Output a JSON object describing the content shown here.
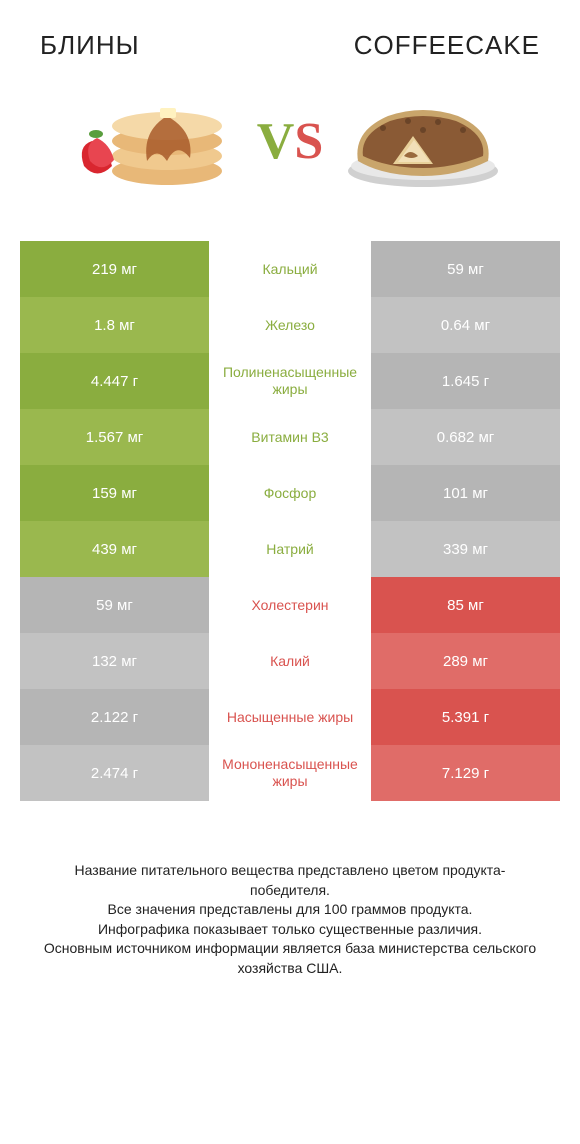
{
  "header": {
    "left_title": "БЛИНЫ",
    "right_title": "COFFEECAKE"
  },
  "vs": {
    "label": "VS",
    "left_color": "#8aad3f",
    "right_color": "#d9534f"
  },
  "colors": {
    "left_green_a": "#8aad3f",
    "left_green_b": "#9ab84e",
    "right_red_a": "#d9534f",
    "right_red_b": "#e06c68",
    "grey_a": "#b5b5b5",
    "grey_b": "#c2c2c2",
    "mid_green": "#8aad3f",
    "mid_red": "#d9534f"
  },
  "rows": [
    {
      "left": "219 мг",
      "mid": "Кальций",
      "right": "59 мг",
      "winner": "left"
    },
    {
      "left": "1.8 мг",
      "mid": "Железо",
      "right": "0.64 мг",
      "winner": "left"
    },
    {
      "left": "4.447 г",
      "mid": "Полиненасыщенные жиры",
      "right": "1.645 г",
      "winner": "left"
    },
    {
      "left": "1.567 мг",
      "mid": "Витамин B3",
      "right": "0.682 мг",
      "winner": "left"
    },
    {
      "left": "159 мг",
      "mid": "Фосфор",
      "right": "101 мг",
      "winner": "left"
    },
    {
      "left": "439 мг",
      "mid": "Натрий",
      "right": "339 мг",
      "winner": "left"
    },
    {
      "left": "59 мг",
      "mid": "Холестерин",
      "right": "85 мг",
      "winner": "right"
    },
    {
      "left": "132 мг",
      "mid": "Калий",
      "right": "289 мг",
      "winner": "right"
    },
    {
      "left": "2.122 г",
      "mid": "Насыщенные жиры",
      "right": "5.391 г",
      "winner": "right"
    },
    {
      "left": "2.474 г",
      "mid": "Мононенасыщенные жиры",
      "right": "7.129 г",
      "winner": "right"
    }
  ],
  "footer": {
    "line1": "Название питательного вещества представлено цветом продукта-победителя.",
    "line2": "Все значения представлены для 100 граммов продукта.",
    "line3": "Инфографика показывает только существенные различия.",
    "line4": "Основным источником информации является база министерства сельского хозяйства США."
  }
}
